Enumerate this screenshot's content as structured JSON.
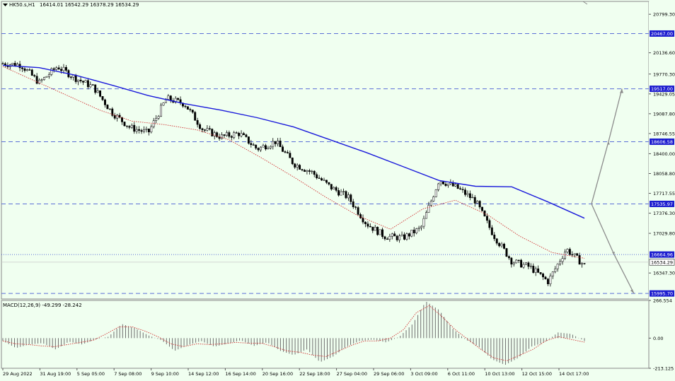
{
  "chart_data": [
    {
      "type": "candlestick",
      "symbol_header": "HK50.s,H1",
      "ohlc_header": "16414.01 16542.29 16378.29 16534.29",
      "ylim": [
        15900,
        21020
      ],
      "y_ticks": [
        "20799.30",
        "20136.60",
        "19770.30",
        "19429.05",
        "19087.80",
        "18746.55",
        "18400.00",
        "18058.80",
        "17717.55",
        "17376.30",
        "17029.80",
        "16347.30"
      ],
      "x_ticks": [
        "29 Aug 2022",
        "31 Aug 19:00",
        "5 Sep 05:00",
        "7 Sep 08:00",
        "9 Sep 10:00",
        "14 Sep 12:00",
        "16 Sep 14:00",
        "20 Sep 16:00",
        "22 Sep 18:00",
        "27 Sep 04:00",
        "29 Sep 06:00",
        "3 Oct 09:00",
        "6 Oct 11:00",
        "10 Oct 13:00",
        "12 Oct 15:00",
        "14 Oct 17:00"
      ],
      "price_levels": [
        {
          "value": "20467.00",
          "style": "dashed"
        },
        {
          "value": "19517.00",
          "style": "dashed"
        },
        {
          "value": "18606.58",
          "style": "dashed"
        },
        {
          "value": "17535.97",
          "style": "dashed"
        },
        {
          "value": "16664.96",
          "style": "dotted"
        },
        {
          "value": "15995.70",
          "style": "dashed"
        }
      ],
      "current_price": "16534.29",
      "close_path": [
        19950,
        19930,
        19620,
        19900,
        19700,
        19540,
        19110,
        18850,
        18760,
        19350,
        19260,
        18820,
        18690,
        18750,
        18480,
        18610,
        18230,
        18080,
        17830,
        17650,
        17200,
        16980,
        16950,
        17120,
        17950,
        17810,
        17590,
        17000,
        16550,
        16450,
        16200,
        16760,
        16480
      ],
      "moving_averages": [
        {
          "color": "#1a1adb",
          "values": [
            19920,
            19880,
            19750,
            19580,
            19400,
            19260,
            19150,
            19020,
            18860,
            18640,
            18420,
            18180,
            17940,
            17840,
            17830,
            17570,
            17290
          ]
        },
        {
          "color": "#d23232",
          "values": [
            19900,
            19650,
            19400,
            19150,
            18960,
            18900,
            18810,
            18640,
            18330,
            18000,
            17650,
            17330,
            17100,
            17450,
            17600,
            17350,
            16980,
            16700,
            16600
          ]
        }
      ],
      "projection_arrows": {
        "color": "#8c8c8c",
        "points": [
          [
            17535.97,
            17535.97
          ],
          [
            18606.58,
            19517.0
          ],
          [
            16664.96,
            15995.7
          ]
        ]
      }
    },
    {
      "type": "histogram",
      "label": "MACD(12,26,9) -49.299 -28.242",
      "ylim": [
        -213.125,
        266.554
      ],
      "y_ticks": [
        "266.554",
        "0.00",
        "-213.125"
      ],
      "histogram_path": [
        -20,
        -70,
        -45,
        -35,
        -80,
        -25,
        -45,
        -10,
        10,
        100,
        70,
        20,
        -15,
        -90,
        -50,
        -20,
        -60,
        -40,
        -15,
        -55,
        -30,
        -90,
        -120,
        -80,
        -170,
        -130,
        -60,
        -20,
        -10,
        -30,
        10,
        100,
        260,
        200,
        70,
        -10,
        -60,
        -150,
        -190,
        -140,
        -60,
        -30,
        40,
        30,
        -20
      ],
      "signal_path": [
        -20,
        -40,
        -45,
        -55,
        -60,
        -45,
        -30,
        -15,
        30,
        80,
        80,
        50,
        10,
        -40,
        -60,
        -40,
        -45,
        -40,
        -30,
        -35,
        -35,
        -60,
        -90,
        -100,
        -120,
        -130,
        -90,
        -50,
        -20,
        -20,
        0,
        60,
        180,
        230,
        150,
        60,
        -10,
        -80,
        -140,
        -160,
        -120,
        -80,
        -20,
        10,
        -10,
        -28
      ]
    }
  ]
}
